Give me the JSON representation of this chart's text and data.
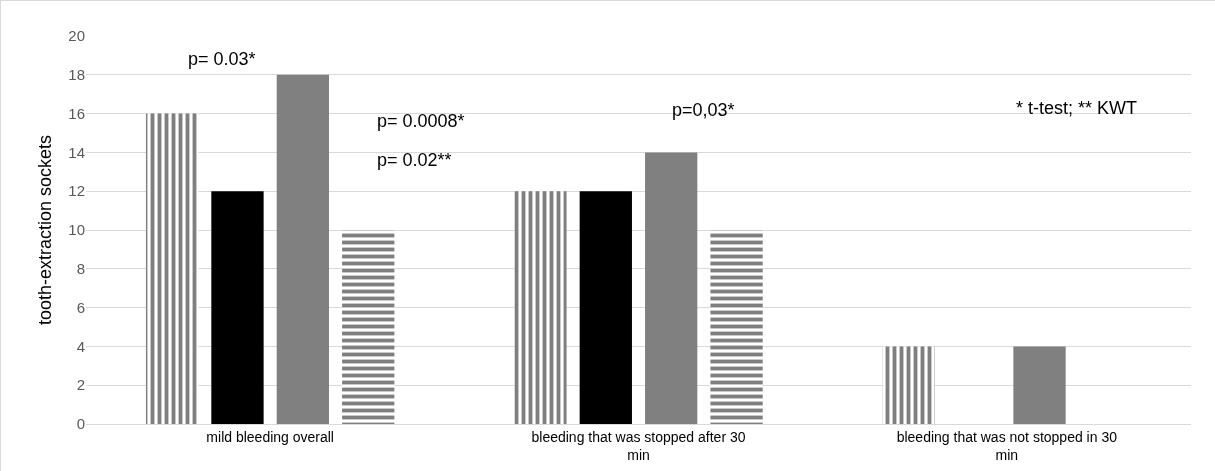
{
  "chart_data": {
    "type": "bar",
    "ylabel": "tooth-extraction sockets",
    "categories": [
      "mild bleeding overall",
      "bleeding that was stopped after 30 min",
      "bleeding that was not stopped in 30 min"
    ],
    "series": [
      {
        "color": "#000000",
        "values": [
          16,
          12,
          4
        ]
      },
      {
        "color": "#000000",
        "values": [
          12,
          12,
          0
        ]
      },
      {
        "color": "#808080",
        "values": [
          18,
          14,
          4
        ]
      },
      {
        "color": "#000000",
        "values": [
          10,
          10,
          0
        ]
      }
    ],
    "ylim": [
      0,
      20
    ],
    "yticks": [
      0,
      2,
      4,
      6,
      8,
      10,
      12,
      14,
      16,
      18,
      20
    ],
    "grid": "y",
    "annotations": [
      "p= 0.03*",
      "p= 0.0008*",
      "p= 0.02**",
      "p=0,03*",
      "* t-test; ** KWT"
    ]
  }
}
